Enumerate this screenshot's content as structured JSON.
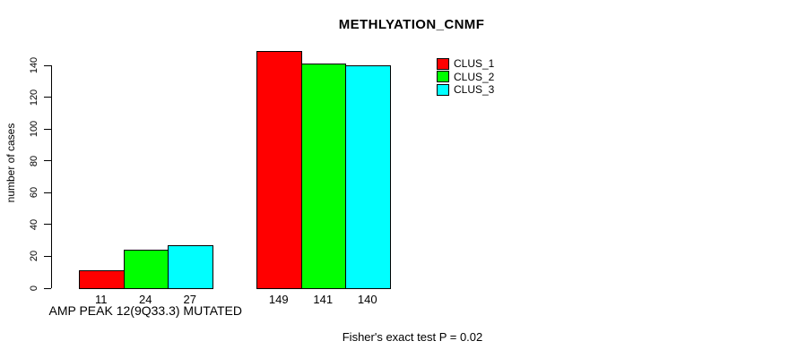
{
  "chart_data": {
    "type": "bar",
    "title": "METHLYATION_CNMF",
    "ylabel": "number of cases",
    "xlabel": "",
    "ylim": [
      0,
      140
    ],
    "yticks": [
      0,
      20,
      40,
      60,
      80,
      100,
      120,
      140
    ],
    "grid": false,
    "legend_position": "top-right",
    "categories": [
      "AMP PEAK 12(9Q33.3) MUTATED",
      ""
    ],
    "series": [
      {
        "name": "CLUS_1",
        "color": "#ff0000",
        "values": [
          11,
          149
        ]
      },
      {
        "name": "CLUS_2",
        "color": "#00ff00",
        "values": [
          24,
          141
        ]
      },
      {
        "name": "CLUS_3",
        "color": "#00ffff",
        "values": [
          27,
          140
        ]
      }
    ],
    "bar_value_labels": [
      [
        "11",
        "24",
        "27"
      ],
      [
        "149",
        "141",
        "140"
      ]
    ],
    "annotation": "Fisher's exact test P = 0.02",
    "axis_color": "#000000",
    "background_color": "#ffffff"
  }
}
